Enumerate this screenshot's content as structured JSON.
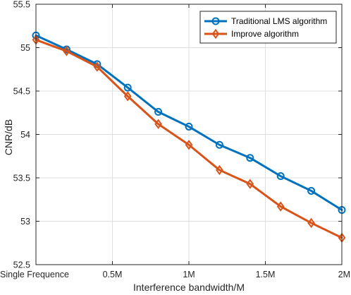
{
  "chart_data": {
    "type": "line",
    "x": [
      0,
      0.2,
      0.4,
      0.6,
      0.8,
      1.0,
      1.2,
      1.4,
      1.6,
      1.8,
      2.0
    ],
    "xticks": [
      {
        "value": 0,
        "label": "Single Frequence"
      },
      {
        "value": 0.5,
        "label": "0.5M"
      },
      {
        "value": 1.0,
        "label": "1M"
      },
      {
        "value": 1.5,
        "label": "1.5M"
      },
      {
        "value": 2.0,
        "label": "2M"
      }
    ],
    "yticks": [
      {
        "value": 52.5,
        "label": "52.5"
      },
      {
        "value": 53,
        "label": "53"
      },
      {
        "value": 53.5,
        "label": "53.5"
      },
      {
        "value": 54,
        "label": "54"
      },
      {
        "value": 54.5,
        "label": "54.5"
      },
      {
        "value": 55,
        "label": "55"
      },
      {
        "value": 55.5,
        "label": "55.5"
      }
    ],
    "xlim": [
      0,
      2.0
    ],
    "ylim": [
      52.5,
      55.5
    ],
    "xlabel": "Interference bandwidth/M",
    "ylabel": "CNR/dB",
    "grid": true,
    "legend_position": "top-right",
    "series": [
      {
        "name": "Traditional LMS algorithm",
        "color": "#0072BD",
        "marker": "circle",
        "values": [
          55.14,
          54.98,
          54.81,
          54.54,
          54.26,
          54.09,
          53.88,
          53.73,
          53.52,
          53.35,
          53.13
        ]
      },
      {
        "name": "Improve algorithm",
        "color": "#D95319",
        "marker": "diamond",
        "values": [
          55.09,
          54.96,
          54.78,
          54.44,
          54.12,
          53.88,
          53.59,
          53.43,
          53.17,
          52.98,
          52.81
        ]
      }
    ]
  }
}
